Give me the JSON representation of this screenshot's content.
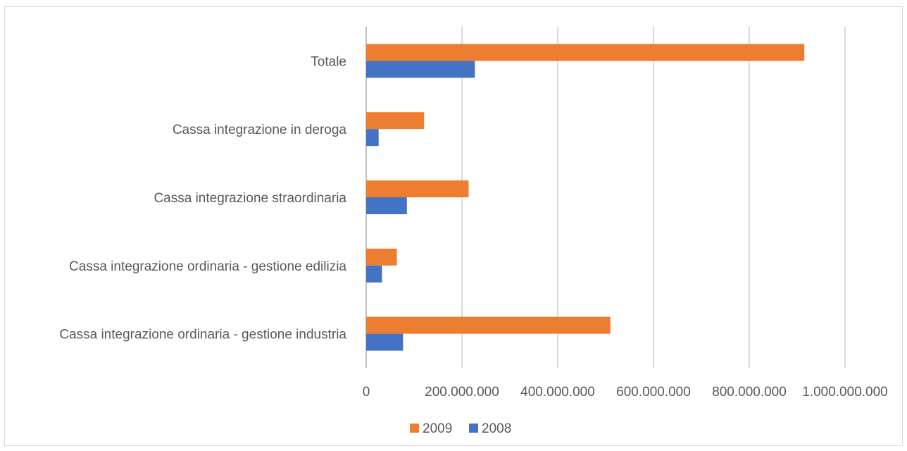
{
  "chart_data": {
    "type": "bar",
    "orientation": "horizontal",
    "title": "",
    "xlabel": "",
    "ylabel": "",
    "categories": [
      "Totale",
      "Cassa integrazione in deroga",
      "Cassa integrazione straordinaria",
      "Cassa integrazione ordinaria - gestione edilizia",
      "Cassa integrazione ordinaria - gestione industria"
    ],
    "series": [
      {
        "name": "2009",
        "color": "#ED7D31",
        "values": [
          915000000,
          121000000,
          214000000,
          64000000,
          510000000
        ]
      },
      {
        "name": "2008",
        "color": "#4472C4",
        "values": [
          227000000,
          26000000,
          85000000,
          33000000,
          77000000
        ]
      }
    ],
    "xlim": [
      0,
      1000000000
    ],
    "xticks": [
      0,
      200000000,
      400000000,
      600000000,
      800000000,
      1000000000
    ],
    "xtick_labels": [
      "0",
      "200.000.000",
      "400.000.000",
      "600.000.000",
      "800.000.000",
      "1.000.000.000"
    ],
    "grid": true,
    "legend_position": "bottom",
    "legend_order": [
      "2009",
      "2008"
    ]
  }
}
